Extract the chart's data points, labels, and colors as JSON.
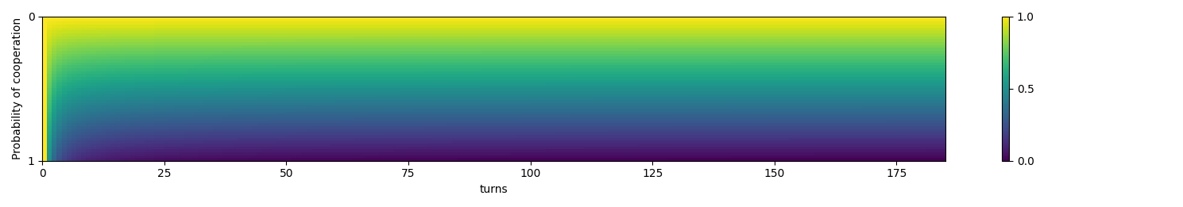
{
  "xlabel": "turns",
  "ylabel": "Probability of cooperation",
  "turns": 185,
  "prob_steps": 50,
  "cmap": "viridis",
  "vmin": 0.0,
  "vmax": 1.0,
  "colorbar_ticks": [
    0.0,
    0.5,
    1.0
  ],
  "xticks": [
    0,
    25,
    50,
    75,
    100,
    125,
    150,
    175
  ],
  "yticks": [
    0,
    1
  ],
  "figsize": [
    14.89,
    2.61
  ],
  "dpi": 100
}
